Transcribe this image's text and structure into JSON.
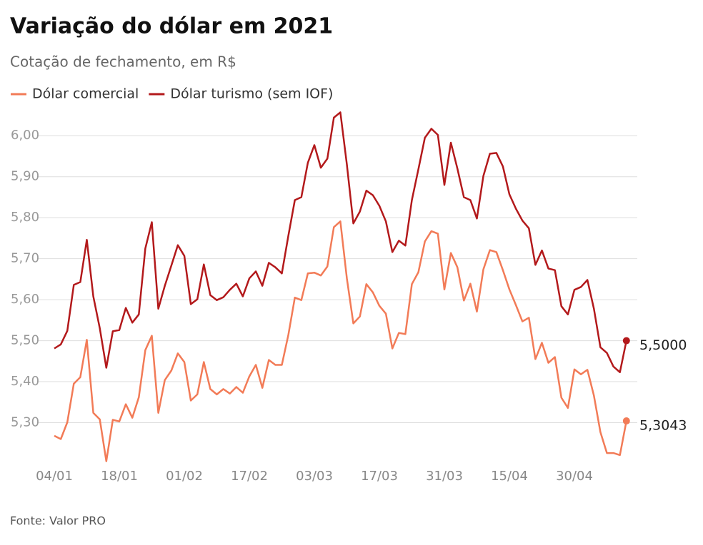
{
  "chart_data": {
    "type": "line",
    "title": "Variação do dólar em 2021",
    "subtitle": "Cotação de fechamento, em R$",
    "source": "Fonte: Valor PRO",
    "categories": [
      "04/01",
      null,
      null,
      null,
      null,
      null,
      null,
      null,
      null,
      null,
      "18/01",
      null,
      null,
      null,
      null,
      null,
      null,
      null,
      null,
      null,
      "01/02",
      null,
      null,
      null,
      null,
      null,
      null,
      null,
      null,
      null,
      "17/02",
      null,
      null,
      null,
      null,
      null,
      null,
      null,
      null,
      null,
      "03/03",
      null,
      null,
      null,
      null,
      null,
      null,
      null,
      null,
      null,
      "17/03",
      null,
      null,
      null,
      null,
      null,
      null,
      null,
      null,
      null,
      "31/03",
      null,
      null,
      null,
      null,
      null,
      null,
      null,
      null,
      null,
      "15/04",
      null,
      null,
      null,
      null,
      null,
      null,
      null,
      null,
      null,
      "30/04",
      null,
      null,
      null,
      null,
      null,
      null,
      null,
      null
    ],
    "series": [
      {
        "name": "Dólar comercial",
        "color": "#f27b57",
        "values": [
          5.268,
          5.26,
          5.301,
          5.395,
          5.411,
          5.502,
          5.324,
          5.308,
          5.206,
          5.307,
          5.303,
          5.345,
          5.312,
          5.362,
          5.477,
          5.512,
          5.324,
          5.404,
          5.427,
          5.469,
          5.448,
          5.354,
          5.369,
          5.448,
          5.382,
          5.369,
          5.382,
          5.371,
          5.387,
          5.373,
          5.413,
          5.441,
          5.385,
          5.453,
          5.441,
          5.441,
          5.514,
          5.605,
          5.599,
          5.664,
          5.666,
          5.659,
          5.681,
          5.777,
          5.791,
          5.652,
          5.542,
          5.559,
          5.638,
          5.618,
          5.585,
          5.566,
          5.481,
          5.519,
          5.516,
          5.638,
          5.667,
          5.742,
          5.767,
          5.761,
          5.625,
          5.714,
          5.679,
          5.598,
          5.639,
          5.571,
          5.674,
          5.721,
          5.716,
          5.672,
          5.625,
          5.587,
          5.547,
          5.556,
          5.455,
          5.495,
          5.446,
          5.46,
          5.361,
          5.336,
          5.43,
          5.418,
          5.429,
          5.366,
          5.277,
          5.226,
          5.226,
          5.221,
          5.3043
        ],
        "value_labels": [
          null,
          null,
          null,
          null,
          null,
          null,
          null,
          null,
          null,
          null,
          null,
          null,
          null,
          null,
          null,
          null,
          null,
          null,
          null,
          null,
          null,
          null,
          null,
          null,
          null,
          null,
          null,
          null,
          null,
          null,
          null,
          null,
          null,
          null,
          null,
          null,
          null,
          null,
          null,
          null,
          null,
          null,
          null,
          null,
          null,
          null,
          null,
          null,
          null,
          null,
          null,
          null,
          null,
          null,
          null,
          null,
          null,
          null,
          null,
          null,
          null,
          null,
          null,
          null,
          null,
          null,
          null,
          null,
          null,
          null,
          null,
          null,
          null,
          null,
          null,
          null,
          null,
          null,
          null,
          null,
          null,
          null,
          null,
          null,
          null,
          null,
          null,
          null,
          "5,3043"
        ]
      },
      {
        "name": "Dólar turismo (sem IOF)",
        "color": "#b3191b",
        "values": [
          5.481,
          5.491,
          5.524,
          5.636,
          5.643,
          5.746,
          5.608,
          5.53,
          5.434,
          5.523,
          5.526,
          5.58,
          5.544,
          5.564,
          5.725,
          5.789,
          5.578,
          5.634,
          5.683,
          5.733,
          5.707,
          5.589,
          5.601,
          5.686,
          5.611,
          5.599,
          5.606,
          5.624,
          5.639,
          5.608,
          5.652,
          5.669,
          5.634,
          5.69,
          5.679,
          5.664,
          5.756,
          5.843,
          5.85,
          5.934,
          5.977,
          5.922,
          5.944,
          6.044,
          6.057,
          5.93,
          5.786,
          5.815,
          5.866,
          5.855,
          5.829,
          5.791,
          5.716,
          5.744,
          5.732,
          5.843,
          5.918,
          5.995,
          6.017,
          6.002,
          5.88,
          5.983,
          5.92,
          5.85,
          5.843,
          5.798,
          5.902,
          5.956,
          5.958,
          5.925,
          5.857,
          5.822,
          5.793,
          5.774,
          5.685,
          5.72,
          5.676,
          5.672,
          5.584,
          5.564,
          5.624,
          5.631,
          5.648,
          5.578,
          5.484,
          5.47,
          5.437,
          5.423,
          5.5
        ],
        "value_labels": [
          null,
          null,
          null,
          null,
          null,
          null,
          null,
          null,
          null,
          null,
          null,
          null,
          null,
          null,
          null,
          null,
          null,
          null,
          null,
          null,
          null,
          null,
          null,
          null,
          null,
          null,
          null,
          null,
          null,
          null,
          null,
          null,
          null,
          null,
          null,
          null,
          null,
          null,
          null,
          null,
          null,
          null,
          null,
          null,
          null,
          null,
          null,
          null,
          null,
          null,
          null,
          null,
          null,
          null,
          null,
          null,
          null,
          null,
          null,
          null,
          null,
          null,
          null,
          null,
          null,
          null,
          null,
          null,
          null,
          null,
          null,
          null,
          null,
          null,
          null,
          null,
          null,
          null,
          null,
          null,
          null,
          null,
          null,
          null,
          null,
          null,
          null,
          null,
          "5,5000"
        ]
      }
    ],
    "ylim": [
      5.2,
      6.07
    ],
    "yticks": [
      {
        "value": 5.3,
        "label": "5,30"
      },
      {
        "value": 5.4,
        "label": "5,40"
      },
      {
        "value": 5.5,
        "label": "5,50"
      },
      {
        "value": 5.6,
        "label": "5,60"
      },
      {
        "value": 5.7,
        "label": "5,70"
      },
      {
        "value": 5.8,
        "label": "5,80"
      },
      {
        "value": 5.9,
        "label": "5,90"
      },
      {
        "value": 6,
        "label": "6,00"
      }
    ],
    "grid": true
  }
}
